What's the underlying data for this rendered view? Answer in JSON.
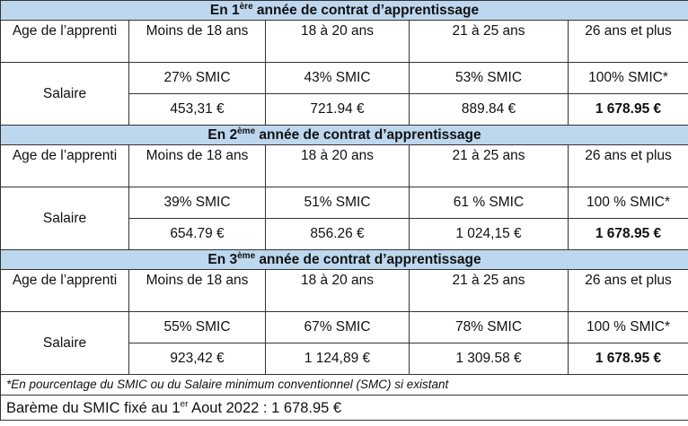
{
  "sections": [
    {
      "title_prefix": "En 1",
      "title_sup": "ère",
      "title_suffix": " année de contrat d’apprentissage",
      "age_label": "Age de l’apprenti",
      "age_groups": [
        "Moins de 18 ans",
        "18 à 20 ans",
        "21 à 25 ans",
        "26 ans et plus"
      ],
      "salary_label": "Salaire",
      "percentages": [
        "27% SMIC",
        "43% SMIC",
        "53% SMIC",
        "100% SMIC*"
      ],
      "amounts": [
        "453,31 €",
        "721.94 €",
        "889.84 €",
        "1 678.95 €"
      ]
    },
    {
      "title_prefix": "En 2",
      "title_sup": "ème",
      "title_suffix": " année de contrat d’apprentissage",
      "age_label": "Age de l’apprenti",
      "age_groups": [
        "Moins de 18 ans",
        "18 à 20 ans",
        "21 à 25 ans",
        "26 ans et plus"
      ],
      "salary_label": "Salaire",
      "percentages": [
        "39% SMIC",
        "51% SMIC",
        "61 % SMIC",
        "100 % SMIC*"
      ],
      "amounts": [
        "654.79 €",
        "856.26 €",
        "1 024,15 €",
        "1 678.95 €"
      ]
    },
    {
      "title_prefix": "En 3",
      "title_sup": "ème",
      "title_suffix": " année de contrat d’apprentissage",
      "age_label": "Age de l’apprenti",
      "age_groups": [
        "Moins de 18 ans",
        "18 à 20 ans",
        "21 à 25 ans",
        "26 ans et plus"
      ],
      "salary_label": "Salaire",
      "percentages": [
        "55% SMIC",
        "67% SMIC",
        "78% SMIC",
        "100 % SMIC*"
      ],
      "amounts": [
        "923,42 €",
        "1 124,89 €",
        "1 309.58 €",
        "1 678.95 €"
      ]
    }
  ],
  "footnote": "*En pourcentage du SMIC ou du Salaire minimum conventionnel (SMC) si existant",
  "bareme": {
    "prefix": "Barème du SMIC fixé au 1",
    "sup": "er",
    "suffix": " Aout 2022 : 1 678.95 €"
  }
}
